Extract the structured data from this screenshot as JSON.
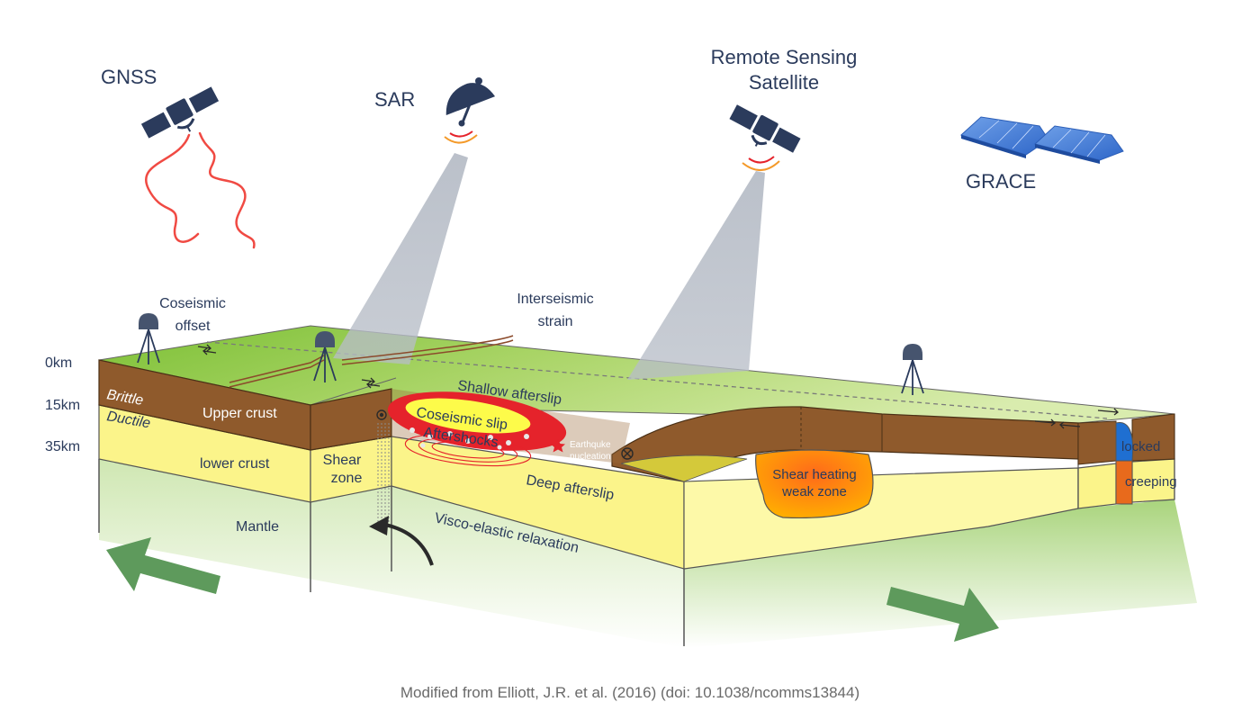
{
  "satellites": {
    "gnss": "GNSS",
    "sar": "SAR",
    "remote_line1": "Remote Sensing",
    "remote_line2": "Satellite",
    "grace": "GRACE"
  },
  "surface_labels": {
    "coseismic_line1": "Coseismic",
    "coseismic_line2": "offset",
    "interseismic_line1": "Interseismic",
    "interseismic_line2": "strain"
  },
  "depths": [
    "0km",
    "15km",
    "35km"
  ],
  "layers": {
    "brittle": "Brittle",
    "ductile": "Ductile",
    "upper_crust": "Upper crust",
    "lower_crust": "lower crust",
    "shear_zone_line1": "Shear",
    "shear_zone_line2": "zone",
    "mantle": "Mantle"
  },
  "processes": {
    "shallow_afterslip": "Shallow afterslip",
    "coseismic_slip": "Coseismic slip",
    "aftershocks": "Aftershocks",
    "nucleation_line1": "Earthquke",
    "nucleation_line2": "nucleation",
    "deep_afterslip": "Deep afterslip",
    "visco": "Visco-elastic relaxation",
    "shear_heating_line1": "Shear heating",
    "shear_heating_line2": "weak zone",
    "locked": "locked",
    "creeping": "creeping"
  },
  "caption": "Modified from Elliott, J.R. et al. (2016) (doi: 10.1038/ncomms13844)",
  "colors": {
    "label": "#2b3b5c",
    "crust": "#8f5a2c",
    "lower": "#fbf48a",
    "grass": "#7fc23a",
    "beam": "#b8bec9",
    "arrow": "#5e9a5c",
    "slip": "#e5232b",
    "gnss_signal": "#f04a43"
  },
  "icons": [
    "satellite-icon",
    "dish-icon",
    "gps-station-icon",
    "solar-panel-icon",
    "arrow-icon",
    "star-icon"
  ]
}
